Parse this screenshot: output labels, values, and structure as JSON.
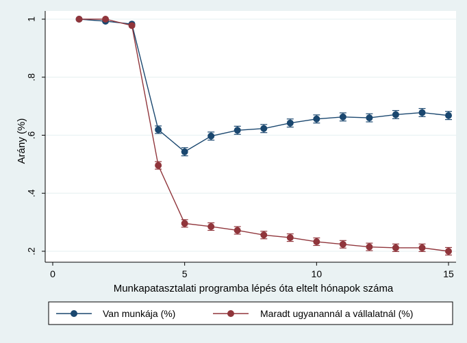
{
  "chart_data": {
    "type": "line",
    "xlabel": "Munkapatasztalati programba lépés óta eltelt hónapok száma",
    "ylabel": "Arány (%)",
    "xlim": [
      0,
      15
    ],
    "ylim": [
      0.2,
      1.0
    ],
    "x_ticks": [
      0,
      5,
      10,
      15
    ],
    "x_tick_labels": [
      "0",
      "5",
      "10",
      "15"
    ],
    "y_ticks": [
      0.2,
      0.4,
      0.6,
      0.8,
      1.0
    ],
    "y_tick_labels": [
      ".2",
      ".4",
      ".6",
      ".8",
      "1"
    ],
    "grid": "horizontal",
    "legend_position": "bottom",
    "error_bars": true,
    "x": [
      1,
      2,
      3,
      4,
      5,
      6,
      7,
      8,
      9,
      10,
      11,
      12,
      13,
      14,
      15
    ],
    "series": [
      {
        "name": "Van munkája (%)",
        "color": "#1a476f",
        "values": [
          1.0,
          0.993,
          0.983,
          0.619,
          0.543,
          0.597,
          0.617,
          0.623,
          0.642,
          0.656,
          0.663,
          0.66,
          0.671,
          0.678,
          0.668
        ],
        "ci_half": [
          0.0,
          0.0,
          0.0,
          0.013,
          0.014,
          0.014,
          0.014,
          0.014,
          0.014,
          0.014,
          0.014,
          0.014,
          0.014,
          0.014,
          0.014
        ]
      },
      {
        "name": "Maradt ugyanannál a vállalatnál (%)",
        "color": "#90353b",
        "values": [
          1.0,
          1.0,
          0.978,
          0.496,
          0.296,
          0.285,
          0.272,
          0.256,
          0.247,
          0.233,
          0.224,
          0.215,
          0.212,
          0.212,
          0.2
        ],
        "ci_half": [
          0.0,
          0.0,
          0.0,
          0.013,
          0.013,
          0.013,
          0.013,
          0.013,
          0.013,
          0.013,
          0.013,
          0.013,
          0.013,
          0.013,
          0.013
        ]
      }
    ]
  }
}
